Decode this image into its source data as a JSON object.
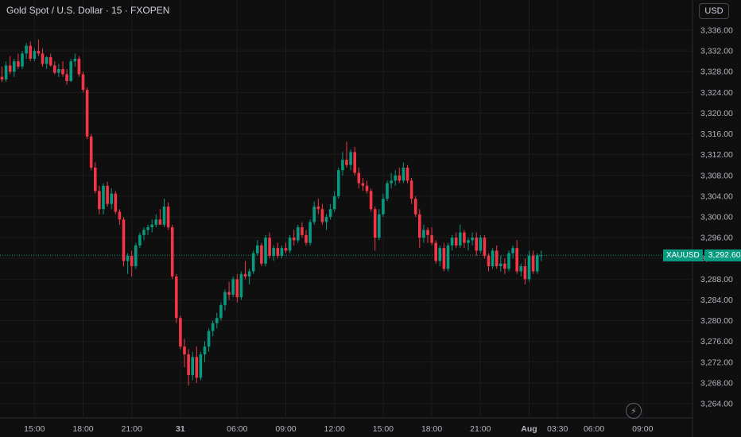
{
  "header": {
    "title": "Gold Spot / U.S. Dollar · 15 · FXOPEN",
    "currency_button": "USD"
  },
  "price_tag": {
    "symbol": "XAUUSD",
    "value": "3,292.60"
  },
  "icons": {
    "lightning": "lightning-icon"
  },
  "colors": {
    "up": "#089981",
    "down": "#f23645",
    "background": "#0f0f0f",
    "grid": "#1e1e1e"
  },
  "chart_data": {
    "type": "candlestick",
    "title": "Gold Spot / U.S. Dollar · 15 · FXOPEN",
    "xlabel": "",
    "ylabel": "",
    "ylim": [
      3262.5,
      3338.5
    ],
    "yticks": [
      "3,336.00",
      "3,332.00",
      "3,328.00",
      "3,324.00",
      "3,320.00",
      "3,316.00",
      "3,312.00",
      "3,308.00",
      "3,304.00",
      "3,300.00",
      "3,296.00",
      "3,292.00",
      "3,288.00",
      "3,284.00",
      "3,280.00",
      "3,276.00",
      "3,272.00",
      "3,268.00",
      "3,264.00"
    ],
    "xticks": [
      {
        "label": "15:00",
        "bar": 8
      },
      {
        "label": "18:00",
        "bar": 20
      },
      {
        "label": "21:00",
        "bar": 32
      },
      {
        "label": "31",
        "bar": 44
      },
      {
        "label": "06:00",
        "bar": 58
      },
      {
        "label": "09:00",
        "bar": 70
      },
      {
        "label": "12:00",
        "bar": 82
      },
      {
        "label": "15:00",
        "bar": 94
      },
      {
        "label": "18:00",
        "bar": 106
      },
      {
        "label": "21:00",
        "bar": 118
      },
      {
        "label": "Aug",
        "bar": 130
      },
      {
        "label": "03:30",
        "bar": 137
      },
      {
        "label": "06:00",
        "bar": 146
      },
      {
        "label": "09:00",
        "bar": 158
      }
    ],
    "last_price": 3292.6,
    "candles": [
      [
        3327.0,
        3329.0,
        3326.0,
        3326.5
      ],
      [
        3326.5,
        3330.0,
        3326.0,
        3329.2
      ],
      [
        3329.2,
        3331.0,
        3327.5,
        3328.0
      ],
      [
        3328.0,
        3330.5,
        3327.0,
        3330.0
      ],
      [
        3330.0,
        3331.5,
        3328.5,
        3329.0
      ],
      [
        3329.0,
        3332.0,
        3328.5,
        3331.5
      ],
      [
        3331.5,
        3333.5,
        3330.5,
        3333.0
      ],
      [
        3333.0,
        3333.8,
        3330.0,
        3330.5
      ],
      [
        3330.5,
        3332.5,
        3330.0,
        3332.0
      ],
      [
        3332.0,
        3334.2,
        3331.0,
        3331.5
      ],
      [
        3331.5,
        3332.5,
        3329.0,
        3329.5
      ],
      [
        3329.5,
        3331.0,
        3328.5,
        3330.8
      ],
      [
        3330.8,
        3331.5,
        3329.0,
        3329.2
      ],
      [
        3329.2,
        3330.0,
        3327.5,
        3327.8
      ],
      [
        3327.8,
        3329.5,
        3327.0,
        3328.5
      ],
      [
        3328.5,
        3330.0,
        3327.0,
        3327.5
      ],
      [
        3327.5,
        3328.5,
        3325.5,
        3326.2
      ],
      [
        3326.2,
        3330.5,
        3326.0,
        3330.0
      ],
      [
        3330.0,
        3331.5,
        3329.0,
        3330.5
      ],
      [
        3330.5,
        3331.0,
        3327.0,
        3327.5
      ],
      [
        3327.5,
        3328.0,
        3324.0,
        3324.5
      ],
      [
        3324.5,
        3325.0,
        3315.0,
        3315.5
      ],
      [
        3315.5,
        3316.0,
        3309.0,
        3309.5
      ],
      [
        3309.5,
        3310.5,
        3304.5,
        3305.0
      ],
      [
        3305.0,
        3306.0,
        3300.5,
        3301.5
      ],
      [
        3301.5,
        3306.5,
        3300.5,
        3306.0
      ],
      [
        3306.0,
        3306.8,
        3302.0,
        3302.5
      ],
      [
        3302.5,
        3305.5,
        3301.5,
        3304.5
      ],
      [
        3304.5,
        3305.0,
        3300.5,
        3301.0
      ],
      [
        3301.0,
        3301.5,
        3298.5,
        3299.5
      ],
      [
        3299.5,
        3300.0,
        3290.5,
        3291.5
      ],
      [
        3291.5,
        3293.0,
        3289.0,
        3292.5
      ],
      [
        3292.5,
        3293.5,
        3288.5,
        3290.5
      ],
      [
        3290.5,
        3295.0,
        3290.0,
        3294.5
      ],
      [
        3294.5,
        3297.0,
        3294.0,
        3296.5
      ],
      [
        3296.5,
        3298.0,
        3295.5,
        3297.5
      ],
      [
        3297.5,
        3298.5,
        3296.5,
        3298.0
      ],
      [
        3298.0,
        3299.5,
        3297.0,
        3298.5
      ],
      [
        3298.5,
        3300.5,
        3298.0,
        3299.5
      ],
      [
        3299.5,
        3301.5,
        3298.5,
        3298.5
      ],
      [
        3298.5,
        3303.5,
        3298.0,
        3302.0
      ],
      [
        3302.0,
        3302.8,
        3297.5,
        3298.0
      ],
      [
        3298.0,
        3298.5,
        3288.0,
        3288.5
      ],
      [
        3288.5,
        3289.0,
        3279.5,
        3280.5
      ],
      [
        3280.5,
        3281.0,
        3274.5,
        3275.0
      ],
      [
        3275.0,
        3276.5,
        3271.0,
        3273.5
      ],
      [
        3273.5,
        3274.5,
        3267.5,
        3269.5
      ],
      [
        3269.5,
        3274.0,
        3268.5,
        3273.0
      ],
      [
        3273.0,
        3275.0,
        3268.0,
        3269.0
      ],
      [
        3269.0,
        3274.0,
        3268.5,
        3273.5
      ],
      [
        3273.5,
        3276.0,
        3272.0,
        3275.0
      ],
      [
        3275.0,
        3278.5,
        3274.0,
        3278.0
      ],
      [
        3278.0,
        3280.0,
        3277.0,
        3279.5
      ],
      [
        3279.5,
        3281.5,
        3278.5,
        3280.5
      ],
      [
        3280.5,
        3283.5,
        3280.0,
        3283.0
      ],
      [
        3283.0,
        3286.0,
        3282.0,
        3285.5
      ],
      [
        3285.5,
        3287.5,
        3284.0,
        3285.0
      ],
      [
        3285.0,
        3288.5,
        3284.5,
        3288.0
      ],
      [
        3288.0,
        3289.0,
        3283.5,
        3284.5
      ],
      [
        3284.5,
        3289.5,
        3284.0,
        3289.0
      ],
      [
        3289.0,
        3291.5,
        3288.0,
        3288.5
      ],
      [
        3288.5,
        3290.0,
        3287.0,
        3289.5
      ],
      [
        3289.5,
        3293.5,
        3289.0,
        3293.0
      ],
      [
        3293.0,
        3295.5,
        3292.5,
        3294.5
      ],
      [
        3294.5,
        3295.0,
        3290.5,
        3291.0
      ],
      [
        3291.0,
        3296.5,
        3290.5,
        3296.0
      ],
      [
        3296.0,
        3297.0,
        3292.0,
        3292.5
      ],
      [
        3292.5,
        3294.5,
        3291.5,
        3294.0
      ],
      [
        3294.0,
        3295.0,
        3292.0,
        3292.5
      ],
      [
        3292.5,
        3294.5,
        3292.0,
        3294.0
      ],
      [
        3294.0,
        3295.0,
        3293.0,
        3293.5
      ],
      [
        3293.5,
        3296.5,
        3293.0,
        3296.0
      ],
      [
        3296.0,
        3297.5,
        3294.5,
        3295.5
      ],
      [
        3295.5,
        3298.5,
        3295.0,
        3298.0
      ],
      [
        3298.0,
        3299.0,
        3296.0,
        3296.5
      ],
      [
        3296.5,
        3297.5,
        3294.5,
        3295.0
      ],
      [
        3295.0,
        3299.5,
        3294.5,
        3299.0
      ],
      [
        3299.0,
        3303.0,
        3298.5,
        3302.0
      ],
      [
        3302.0,
        3303.5,
        3300.5,
        3301.5
      ],
      [
        3301.5,
        3302.5,
        3298.5,
        3299.0
      ],
      [
        3299.0,
        3300.5,
        3297.5,
        3300.0
      ],
      [
        3300.0,
        3302.5,
        3299.5,
        3301.5
      ],
      [
        3301.5,
        3305.0,
        3301.0,
        3304.0
      ],
      [
        3304.0,
        3309.5,
        3303.5,
        3309.0
      ],
      [
        3309.0,
        3312.5,
        3308.0,
        3311.0
      ],
      [
        3311.0,
        3314.5,
        3309.5,
        3310.0
      ],
      [
        3310.0,
        3313.0,
        3309.0,
        3312.5
      ],
      [
        3312.5,
        3313.5,
        3308.0,
        3308.5
      ],
      [
        3308.5,
        3309.5,
        3305.5,
        3306.5
      ],
      [
        3306.5,
        3307.5,
        3305.0,
        3306.0
      ],
      [
        3306.0,
        3307.0,
        3304.5,
        3305.0
      ],
      [
        3305.0,
        3305.5,
        3301.0,
        3301.5
      ],
      [
        3301.5,
        3302.0,
        3293.5,
        3296.0
      ],
      [
        3296.0,
        3301.5,
        3295.5,
        3300.5
      ],
      [
        3300.5,
        3304.5,
        3300.0,
        3303.5
      ],
      [
        3303.5,
        3307.0,
        3303.0,
        3306.5
      ],
      [
        3306.5,
        3308.5,
        3305.5,
        3307.0
      ],
      [
        3307.0,
        3309.0,
        3306.0,
        3308.0
      ],
      [
        3308.0,
        3309.5,
        3306.5,
        3307.0
      ],
      [
        3307.0,
        3310.5,
        3306.5,
        3309.5
      ],
      [
        3309.5,
        3310.0,
        3306.5,
        3307.0
      ],
      [
        3307.0,
        3307.5,
        3302.5,
        3303.5
      ],
      [
        3303.5,
        3304.0,
        3300.0,
        3300.5
      ],
      [
        3300.5,
        3301.5,
        3294.0,
        3296.0
      ],
      [
        3296.0,
        3298.5,
        3295.0,
        3297.5
      ],
      [
        3297.5,
        3298.0,
        3295.0,
        3296.5
      ],
      [
        3296.5,
        3298.0,
        3294.5,
        3295.0
      ],
      [
        3295.0,
        3295.5,
        3291.0,
        3291.5
      ],
      [
        3291.5,
        3294.5,
        3290.5,
        3294.0
      ],
      [
        3294.0,
        3295.0,
        3289.5,
        3290.0
      ],
      [
        3290.0,
        3295.0,
        3289.5,
        3294.5
      ],
      [
        3294.5,
        3296.5,
        3293.5,
        3296.0
      ],
      [
        3296.0,
        3297.0,
        3294.0,
        3294.5
      ],
      [
        3294.5,
        3298.5,
        3294.0,
        3297.0
      ],
      [
        3297.0,
        3297.5,
        3294.0,
        3295.0
      ],
      [
        3295.0,
        3296.0,
        3293.5,
        3295.5
      ],
      [
        3295.5,
        3297.0,
        3294.5,
        3296.0
      ],
      [
        3296.0,
        3297.0,
        3292.5,
        3293.5
      ],
      [
        3293.5,
        3296.5,
        3293.0,
        3296.0
      ],
      [
        3296.0,
        3296.5,
        3292.0,
        3292.5
      ],
      [
        3292.5,
        3293.0,
        3289.5,
        3290.5
      ],
      [
        3290.5,
        3294.0,
        3290.0,
        3293.5
      ],
      [
        3293.5,
        3294.5,
        3290.0,
        3290.5
      ],
      [
        3290.5,
        3292.5,
        3289.5,
        3291.0
      ],
      [
        3291.0,
        3292.0,
        3289.0,
        3290.0
      ],
      [
        3290.0,
        3293.5,
        3289.5,
        3293.0
      ],
      [
        3293.0,
        3294.5,
        3292.0,
        3294.0
      ],
      [
        3294.0,
        3295.5,
        3289.0,
        3289.5
      ],
      [
        3289.5,
        3291.0,
        3288.5,
        3290.5
      ],
      [
        3290.5,
        3292.0,
        3287.0,
        3288.0
      ],
      [
        3288.0,
        3293.5,
        3287.5,
        3292.5
      ],
      [
        3292.5,
        3293.5,
        3289.0,
        3289.5
      ],
      [
        3289.5,
        3293.0,
        3289.0,
        3292.6
      ],
      [
        3292.6,
        3293.5,
        3291.5,
        3292.6
      ]
    ]
  }
}
